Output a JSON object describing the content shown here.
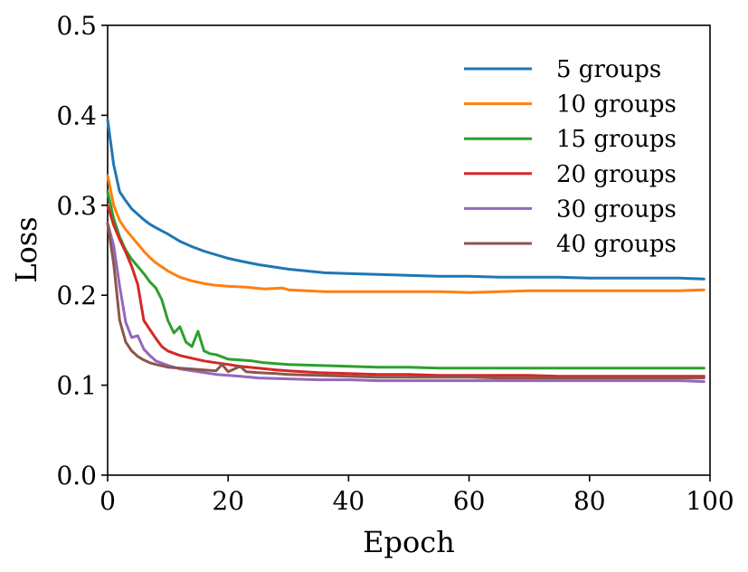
{
  "chart_data": {
    "type": "line",
    "title": "",
    "xlabel": "Epoch",
    "ylabel": "Loss",
    "xlim": [
      0,
      100
    ],
    "ylim": [
      0.0,
      0.5
    ],
    "xticks": [
      0,
      20,
      40,
      60,
      80,
      100
    ],
    "yticks": [
      0.0,
      0.1,
      0.2,
      0.3,
      0.4,
      0.5
    ],
    "xtick_labels": [
      "0",
      "20",
      "40",
      "60",
      "80",
      "100"
    ],
    "ytick_labels": [
      "0.0",
      "0.1",
      "0.2",
      "0.3",
      "0.4",
      "0.5"
    ],
    "grid": false,
    "legend_position": "top-right",
    "series": [
      {
        "name": "5 groups",
        "color": "#1f77b4",
        "x": [
          0,
          1,
          2,
          3,
          4,
          5,
          6,
          7,
          8,
          10,
          12,
          14,
          16,
          18,
          20,
          22,
          25,
          28,
          30,
          33,
          36,
          40,
          45,
          50,
          55,
          60,
          65,
          70,
          75,
          80,
          85,
          90,
          95,
          99
        ],
        "y": [
          0.395,
          0.345,
          0.315,
          0.305,
          0.296,
          0.29,
          0.284,
          0.279,
          0.275,
          0.268,
          0.26,
          0.254,
          0.249,
          0.245,
          0.241,
          0.238,
          0.234,
          0.231,
          0.229,
          0.227,
          0.225,
          0.224,
          0.223,
          0.222,
          0.221,
          0.221,
          0.22,
          0.22,
          0.22,
          0.219,
          0.219,
          0.219,
          0.219,
          0.218
        ]
      },
      {
        "name": "10 groups",
        "color": "#ff7f0e",
        "x": [
          0,
          1,
          2,
          3,
          4,
          5,
          6,
          7,
          8,
          10,
          12,
          14,
          16,
          18,
          20,
          23,
          26,
          29,
          30,
          33,
          36,
          40,
          45,
          50,
          55,
          60,
          65,
          70,
          75,
          80,
          85,
          90,
          95,
          99
        ],
        "y": [
          0.333,
          0.3,
          0.283,
          0.273,
          0.265,
          0.257,
          0.249,
          0.242,
          0.236,
          0.227,
          0.22,
          0.216,
          0.213,
          0.211,
          0.21,
          0.209,
          0.207,
          0.208,
          0.206,
          0.205,
          0.204,
          0.204,
          0.204,
          0.204,
          0.204,
          0.203,
          0.204,
          0.205,
          0.205,
          0.205,
          0.205,
          0.205,
          0.205,
          0.206
        ]
      },
      {
        "name": "15 groups",
        "color": "#2ca02c",
        "x": [
          0,
          1,
          2,
          3,
          4,
          5,
          6,
          7,
          8,
          9,
          10,
          11,
          12,
          13,
          14,
          15,
          16,
          17,
          18,
          20,
          22,
          24,
          26,
          28,
          30,
          35,
          40,
          45,
          50,
          55,
          60,
          65,
          70,
          75,
          80,
          85,
          90,
          95,
          99
        ],
        "y": [
          0.315,
          0.285,
          0.265,
          0.25,
          0.24,
          0.232,
          0.224,
          0.215,
          0.208,
          0.195,
          0.172,
          0.158,
          0.165,
          0.148,
          0.143,
          0.16,
          0.138,
          0.135,
          0.134,
          0.129,
          0.128,
          0.127,
          0.125,
          0.124,
          0.123,
          0.122,
          0.121,
          0.12,
          0.12,
          0.119,
          0.119,
          0.119,
          0.119,
          0.119,
          0.119,
          0.119,
          0.119,
          0.119,
          0.119
        ]
      },
      {
        "name": "20 groups",
        "color": "#d62728",
        "x": [
          0,
          1,
          2,
          3,
          4,
          5,
          6,
          7,
          8,
          9,
          10,
          12,
          14,
          16,
          18,
          20,
          22,
          25,
          28,
          30,
          35,
          40,
          45,
          50,
          55,
          60,
          65,
          70,
          75,
          80,
          85,
          90,
          95,
          99
        ],
        "y": [
          0.3,
          0.278,
          0.262,
          0.248,
          0.232,
          0.212,
          0.172,
          0.162,
          0.152,
          0.143,
          0.138,
          0.133,
          0.13,
          0.127,
          0.125,
          0.123,
          0.121,
          0.119,
          0.117,
          0.116,
          0.114,
          0.113,
          0.112,
          0.112,
          0.111,
          0.111,
          0.111,
          0.111,
          0.11,
          0.11,
          0.11,
          0.11,
          0.11,
          0.11
        ]
      },
      {
        "name": "30 groups",
        "color": "#9467bd",
        "x": [
          0,
          1,
          2,
          3,
          4,
          5,
          6,
          7,
          8,
          10,
          12,
          14,
          16,
          18,
          20,
          22,
          25,
          30,
          35,
          40,
          45,
          50,
          55,
          60,
          65,
          70,
          75,
          80,
          85,
          90,
          95,
          99
        ],
        "y": [
          0.28,
          0.255,
          0.21,
          0.17,
          0.153,
          0.155,
          0.14,
          0.133,
          0.127,
          0.122,
          0.118,
          0.116,
          0.114,
          0.112,
          0.111,
          0.11,
          0.108,
          0.107,
          0.106,
          0.106,
          0.105,
          0.105,
          0.105,
          0.105,
          0.105,
          0.105,
          0.105,
          0.105,
          0.105,
          0.105,
          0.105,
          0.104
        ]
      },
      {
        "name": "40 groups",
        "color": "#8c564b",
        "x": [
          0,
          1,
          2,
          3,
          4,
          5,
          6,
          7,
          8,
          10,
          12,
          14,
          16,
          18,
          19,
          20,
          21,
          22,
          23,
          25,
          28,
          30,
          35,
          40,
          45,
          50,
          55,
          60,
          65,
          70,
          75,
          80,
          85,
          90,
          95,
          99
        ],
        "y": [
          0.28,
          0.235,
          0.172,
          0.148,
          0.138,
          0.132,
          0.128,
          0.125,
          0.123,
          0.12,
          0.119,
          0.118,
          0.117,
          0.116,
          0.123,
          0.115,
          0.118,
          0.121,
          0.115,
          0.114,
          0.113,
          0.112,
          0.111,
          0.11,
          0.109,
          0.109,
          0.109,
          0.109,
          0.108,
          0.108,
          0.108,
          0.108,
          0.108,
          0.108,
          0.108,
          0.108
        ]
      }
    ]
  }
}
